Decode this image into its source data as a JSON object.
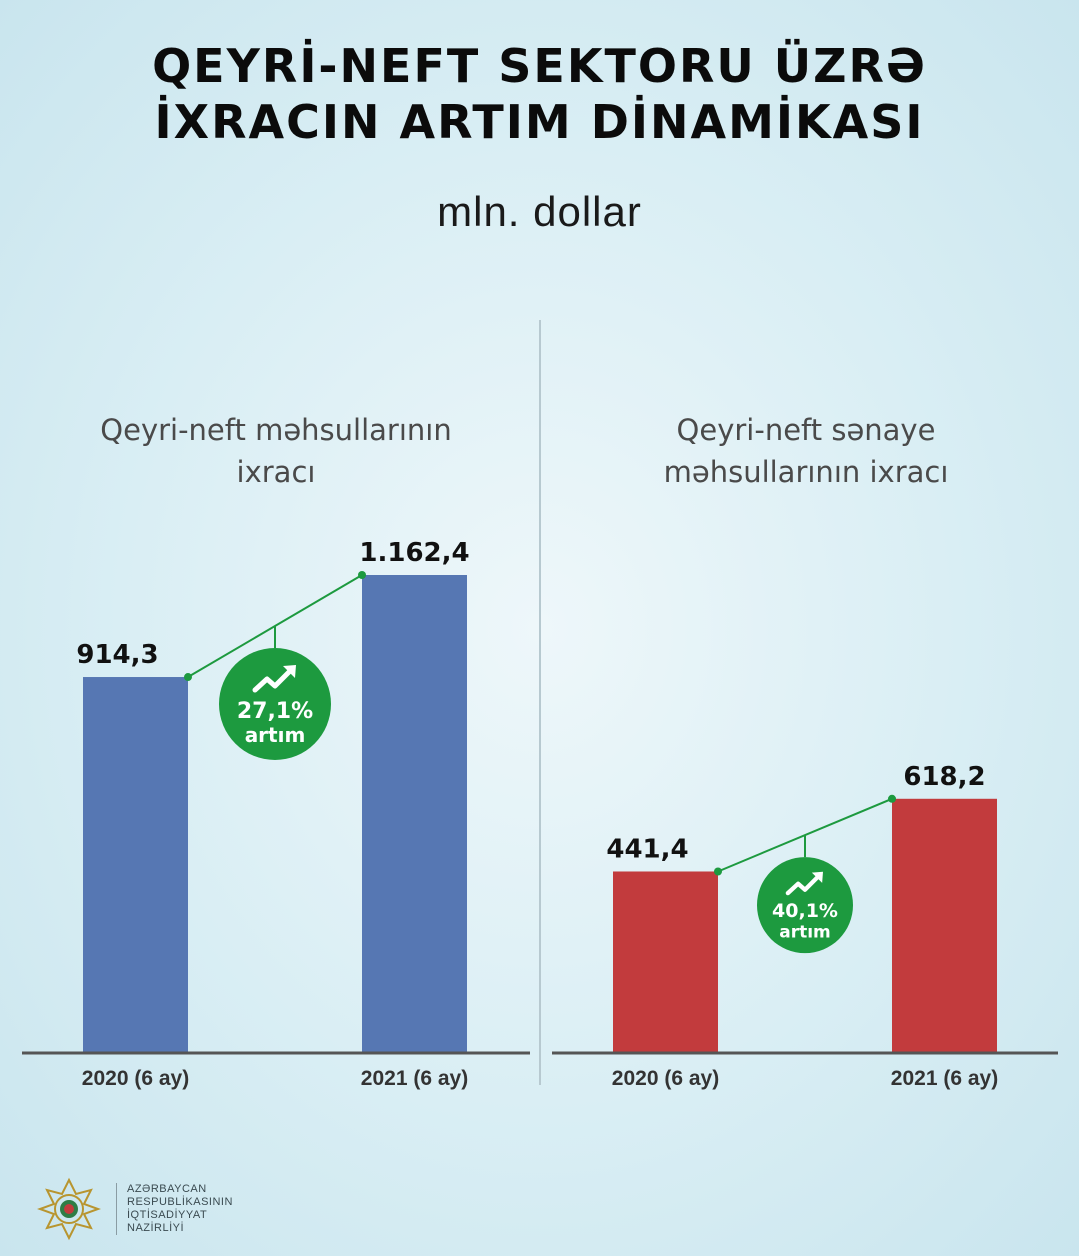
{
  "title_lines": [
    "QEYRİ-NEFT SEKTORU ÜZRƏ",
    "İXRACIN ARTIM DİNAMİKASI"
  ],
  "unit": "mln. dollar",
  "colors": {
    "blue_bar": "#5677b3",
    "red_bar": "#c23b3d",
    "green": "#1d9a3f",
    "axis": "#555555"
  },
  "chart_data": [
    {
      "type": "bar",
      "title": "Qeyri-neft məhsullarının ixracı",
      "title_lines": [
        "Qeyri-neft məhsullarının",
        "ixracı"
      ],
      "categories": [
        "2020 (6 ay)",
        "2021 (6 ay)"
      ],
      "values": [
        914.3,
        1162.4
      ],
      "value_labels": [
        "914,3",
        "1.162,4"
      ],
      "color": "#5677b3",
      "growth": {
        "percent": "27,1%",
        "label": "artım"
      }
    },
    {
      "type": "bar",
      "title": "Qeyri-neft sənaye məhsullarının ixracı",
      "title_lines": [
        "Qeyri-neft sənaye",
        "məhsullarının ixracı"
      ],
      "categories": [
        "2020 (6 ay)",
        "2021 (6 ay)"
      ],
      "values": [
        441.4,
        618.2
      ],
      "value_labels": [
        "441,4",
        "618,2"
      ],
      "color": "#c23b3d",
      "growth": {
        "percent": "40,1%",
        "label": "artım"
      }
    }
  ],
  "footer": {
    "logo_icon": "ministry-emblem-icon",
    "lines": [
      "AZƏRBAYCAN",
      "RESPUBLİKASININ",
      "İQTİSADİYYAT",
      "NAZİRLİYİ"
    ]
  }
}
